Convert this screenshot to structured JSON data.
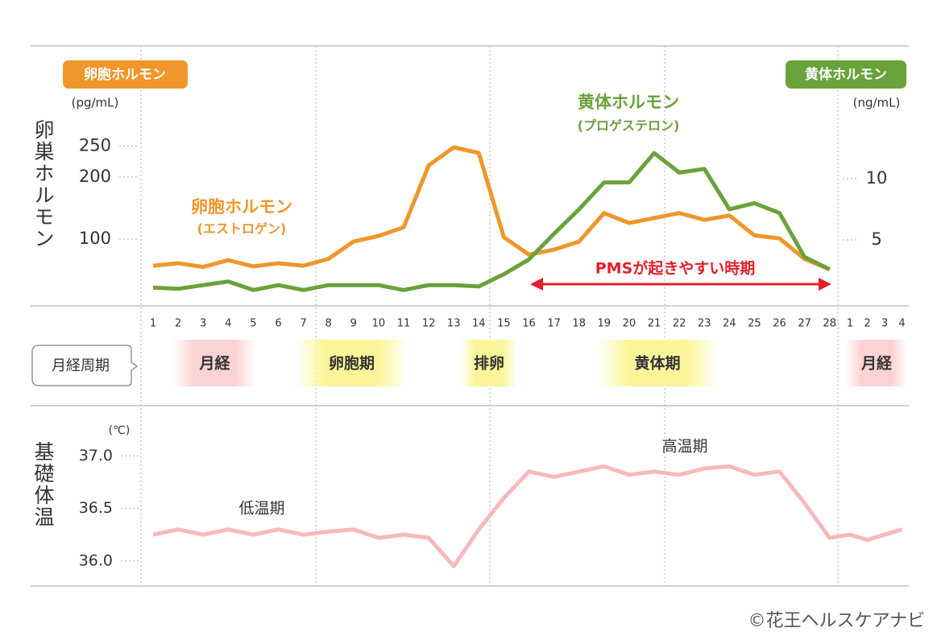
{
  "chart_data": [
    {
      "type": "line",
      "y_label": "卵巣ホルモン",
      "y_unit": "(pg/mL)",
      "y2_unit": "(ng/mL)",
      "categories": [
        "1",
        "2",
        "3",
        "4",
        "5",
        "6",
        "7",
        "8",
        "9",
        "10",
        "11",
        "12",
        "13",
        "14",
        "15",
        "16",
        "17",
        "18",
        "19",
        "20",
        "21",
        "22",
        "23",
        "24",
        "25",
        "26",
        "27",
        "28",
        "1",
        "2",
        "3",
        "4"
      ],
      "series": [
        {
          "name": "卵胞ホルモン",
          "subtitle": "(エストロゲン)",
          "color": "#f0962a",
          "values": [
            57,
            61,
            55,
            66,
            56,
            61,
            57,
            68,
            96,
            105,
            119,
            219,
            248,
            239,
            103,
            75,
            83,
            96,
            142,
            126,
            134,
            142,
            131,
            138,
            106,
            101,
            68,
            51,
            null,
            null,
            null,
            null
          ]
        },
        {
          "name": "黄体ホルモン",
          "subtitle": "(プロゲステロン)",
          "color": "#6aa23a",
          "axis": "y2",
          "values": [
            1.1,
            1.0,
            1.3,
            1.6,
            0.9,
            1.3,
            0.9,
            1.3,
            1.3,
            1.3,
            0.9,
            1.3,
            1.3,
            1.2,
            2.2,
            3.4,
            5.5,
            7.5,
            9.7,
            9.7,
            12.1,
            10.5,
            10.8,
            7.5,
            8.0,
            7.2,
            3.6,
            2.6,
            null,
            null,
            null,
            null
          ]
        }
      ],
      "ylim": [
        0,
        400
      ],
      "yticks": [
        100,
        200,
        250
      ],
      "y2lim": [
        0,
        20
      ],
      "y2ticks": [
        5,
        10
      ],
      "annotation": "PMSが起きやすい時期"
    },
    {
      "type": "line",
      "y_label": "基礎体温",
      "y_unit": "(℃)",
      "color": "#f7b9b9",
      "values": [
        36.25,
        36.3,
        36.25,
        36.3,
        36.25,
        36.3,
        36.25,
        36.28,
        36.3,
        36.22,
        36.25,
        36.22,
        35.95,
        36.3,
        36.6,
        36.85,
        36.8,
        36.85,
        36.9,
        36.82,
        36.85,
        36.82,
        36.88,
        36.9,
        36.82,
        36.85,
        36.55,
        36.22,
        36.25,
        36.2,
        36.25,
        36.3
      ],
      "ylim": [
        35.8,
        37.4
      ],
      "yticks": [
        {
          "value": 36,
          "label": "36.0"
        },
        {
          "value": 36.5,
          "label": "36.5"
        },
        {
          "value": 37,
          "label": "37.0"
        }
      ],
      "annotations": [
        "低温期",
        "高温期"
      ]
    }
  ],
  "cycle": {
    "label": "月経周期",
    "phases": [
      "月経",
      "卵胞期",
      "排卵",
      "黄体期",
      "月経"
    ]
  },
  "credit": "©花王ヘルスケアナビ"
}
